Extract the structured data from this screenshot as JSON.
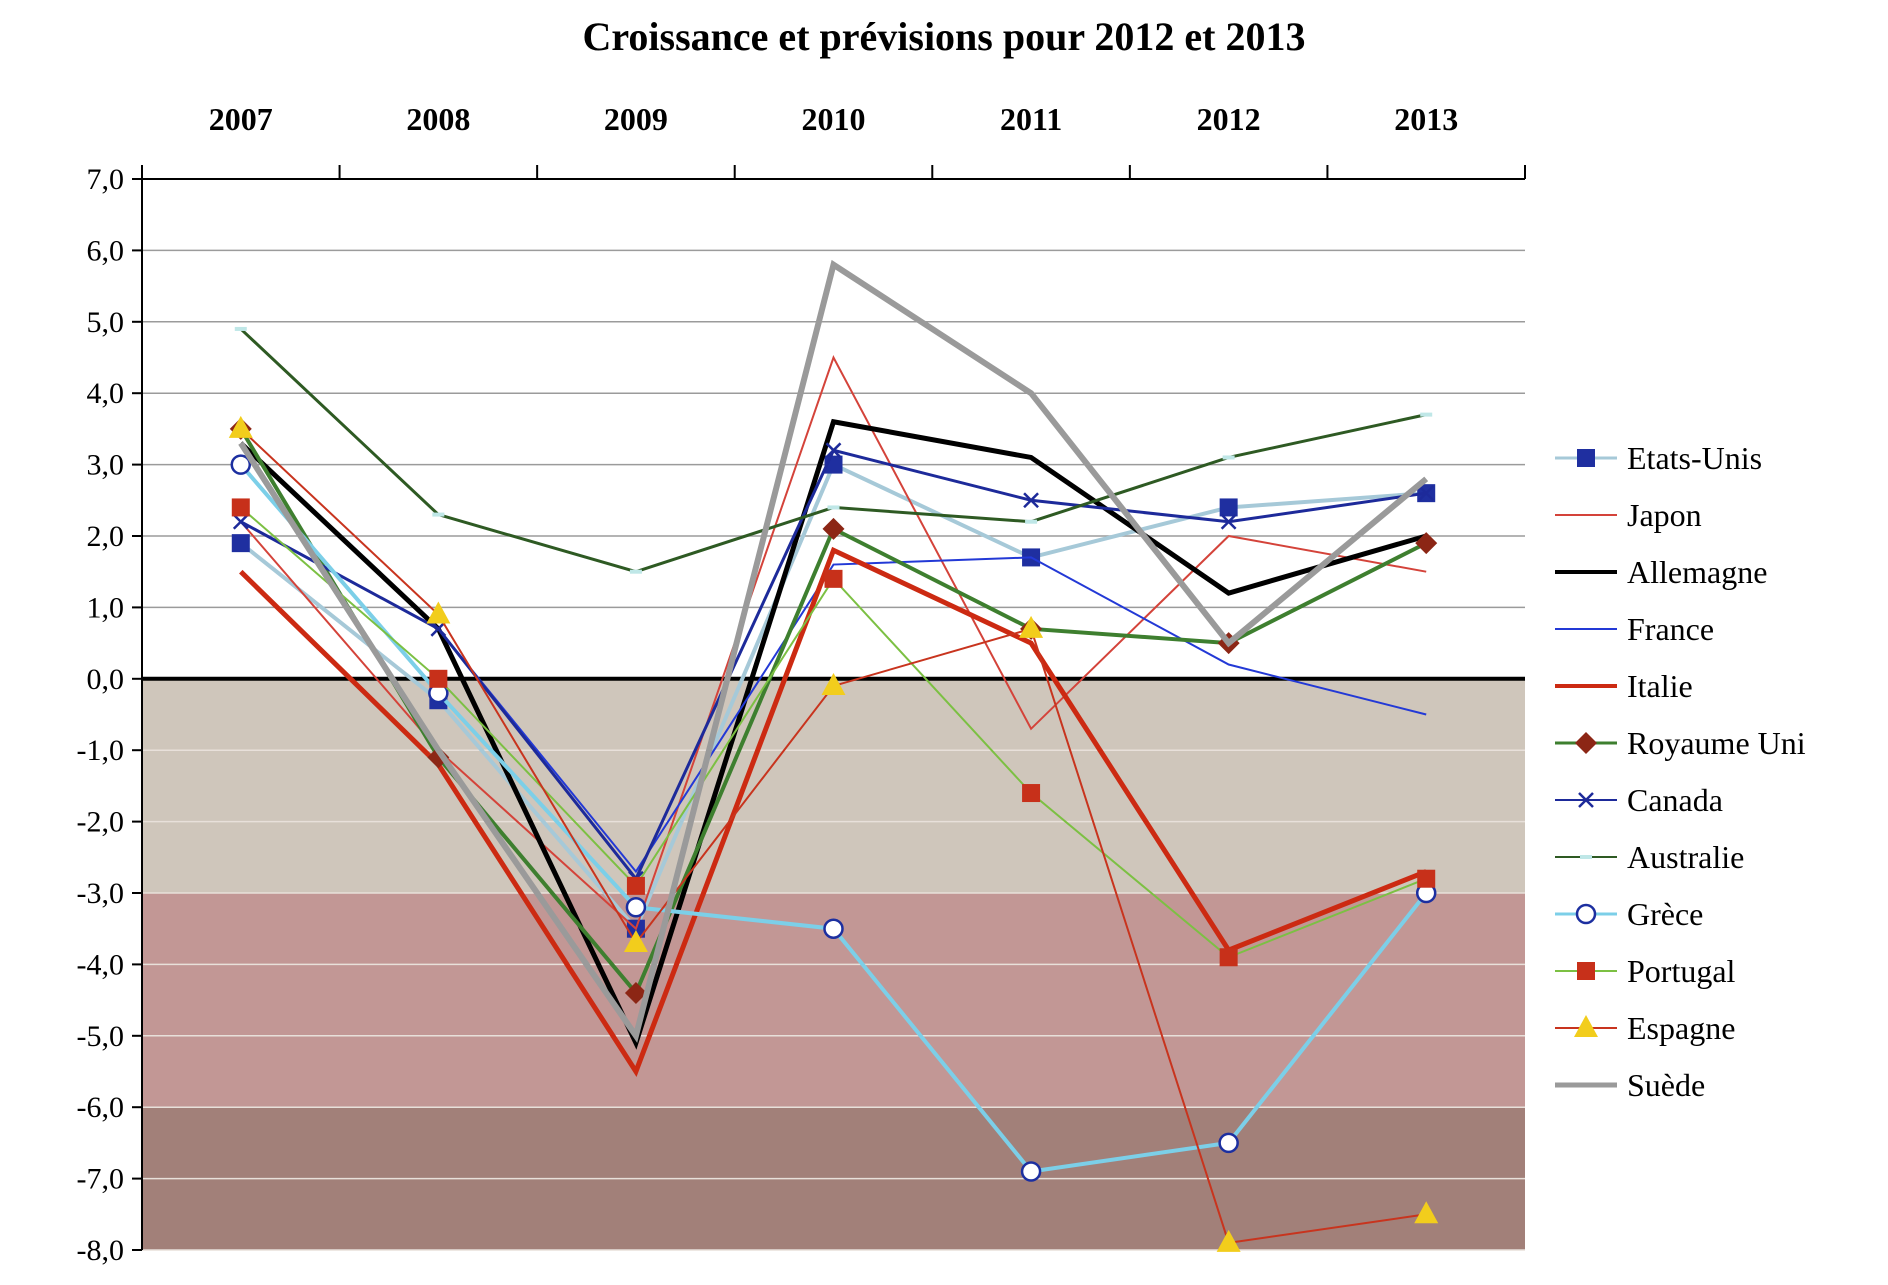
{
  "chart_data": {
    "type": "line",
    "title": "Croissance et prévisions pour 2012 et 2013",
    "xlabel": "",
    "ylabel": "",
    "categories": [
      "2007",
      "2008",
      "2009",
      "2010",
      "2011",
      "2012",
      "2013"
    ],
    "x_axis_position": "top",
    "ylim": [
      -8,
      7
    ],
    "yticks": [
      7,
      6,
      5,
      4,
      3,
      2,
      1,
      0,
      -1,
      -2,
      -3,
      -4,
      -5,
      -6,
      -7,
      -8
    ],
    "ytick_labels": [
      "7,0",
      "6,0",
      "5,0",
      "4,0",
      "3,0",
      "2,0",
      "1,0",
      "0,0",
      "-1,0",
      "-2,0",
      "-3,0",
      "-4,0",
      "-5,0",
      "-6,0",
      "-7,0",
      "-8,0"
    ],
    "grid": true,
    "legend_position": "right",
    "bands": [
      {
        "from": 0,
        "to": -3,
        "color": "#cfc6bb"
      },
      {
        "from": -3,
        "to": -6,
        "color": "#c29795"
      },
      {
        "from": -6,
        "to": -8,
        "color": "#a28079"
      }
    ],
    "series": [
      {
        "name": "Etats-Unis",
        "values": [
          1.9,
          -0.3,
          -3.5,
          3.0,
          1.7,
          2.4,
          2.6
        ],
        "color": "#a6c9d8",
        "marker": "square",
        "marker_color": "#1f2fa0",
        "width": 4
      },
      {
        "name": "Japon",
        "values": [
          2.2,
          -1.0,
          -3.5,
          4.5,
          -0.7,
          2.0,
          1.5
        ],
        "color": "#d4433a",
        "marker": "none",
        "width": 2
      },
      {
        "name": "Allemagne",
        "values": [
          3.3,
          0.7,
          -5.1,
          3.6,
          3.1,
          1.2,
          2.0
        ],
        "color": "#000000",
        "marker": "none",
        "width": 5
      },
      {
        "name": "France",
        "values": [
          2.2,
          0.7,
          -2.7,
          1.6,
          1.7,
          0.2,
          -0.5
        ],
        "color": "#2339d6",
        "marker": "none",
        "width": 2
      },
      {
        "name": "Italie",
        "values": [
          1.5,
          -1.2,
          -5.5,
          1.8,
          0.5,
          -3.8,
          -2.7
        ],
        "color": "#cc2a12",
        "marker": "none",
        "width": 5
      },
      {
        "name": "Royaume Uni",
        "values": [
          3.5,
          -1.1,
          -4.4,
          2.1,
          0.7,
          0.5,
          1.9
        ],
        "color": "#3e7f2f",
        "marker": "diamond",
        "marker_color": "#8c2615",
        "width": 4
      },
      {
        "name": "Canada",
        "values": [
          2.2,
          0.7,
          -2.8,
          3.2,
          2.5,
          2.2,
          2.6
        ],
        "color": "#1d2a9a",
        "marker": "x",
        "marker_color": "#1d2a9a",
        "width": 3
      },
      {
        "name": "Australie",
        "values": [
          4.9,
          2.3,
          1.5,
          2.4,
          2.2,
          3.1,
          3.7
        ],
        "color": "#2e5a23",
        "marker": "dash",
        "marker_color": "#bfe7e7",
        "width": 3
      },
      {
        "name": "Grèce",
        "values": [
          3.0,
          -0.2,
          -3.2,
          -3.5,
          -6.9,
          -6.5,
          -3.0
        ],
        "color": "#7ccfe8",
        "marker": "circle",
        "marker_color": "#1c2fa0",
        "width": 4
      },
      {
        "name": "Portugal",
        "values": [
          2.4,
          0.0,
          -2.9,
          1.4,
          -1.6,
          -3.9,
          -2.8
        ],
        "color": "#7cc043",
        "marker": "square",
        "marker_color": "#c7301a",
        "width": 2
      },
      {
        "name": "Espagne",
        "values": [
          3.5,
          0.9,
          -3.7,
          -0.1,
          0.7,
          -7.9,
          -7.5
        ],
        "color": "#c8341e",
        "marker": "triangle",
        "marker_color": "#f2cd1c",
        "width": 2
      },
      {
        "name": "Suède",
        "values": [
          3.3,
          -1.0,
          -5.0,
          5.8,
          4.0,
          0.5,
          2.8
        ],
        "color": "#9a9a9a",
        "marker": "none",
        "width": 6
      }
    ]
  }
}
